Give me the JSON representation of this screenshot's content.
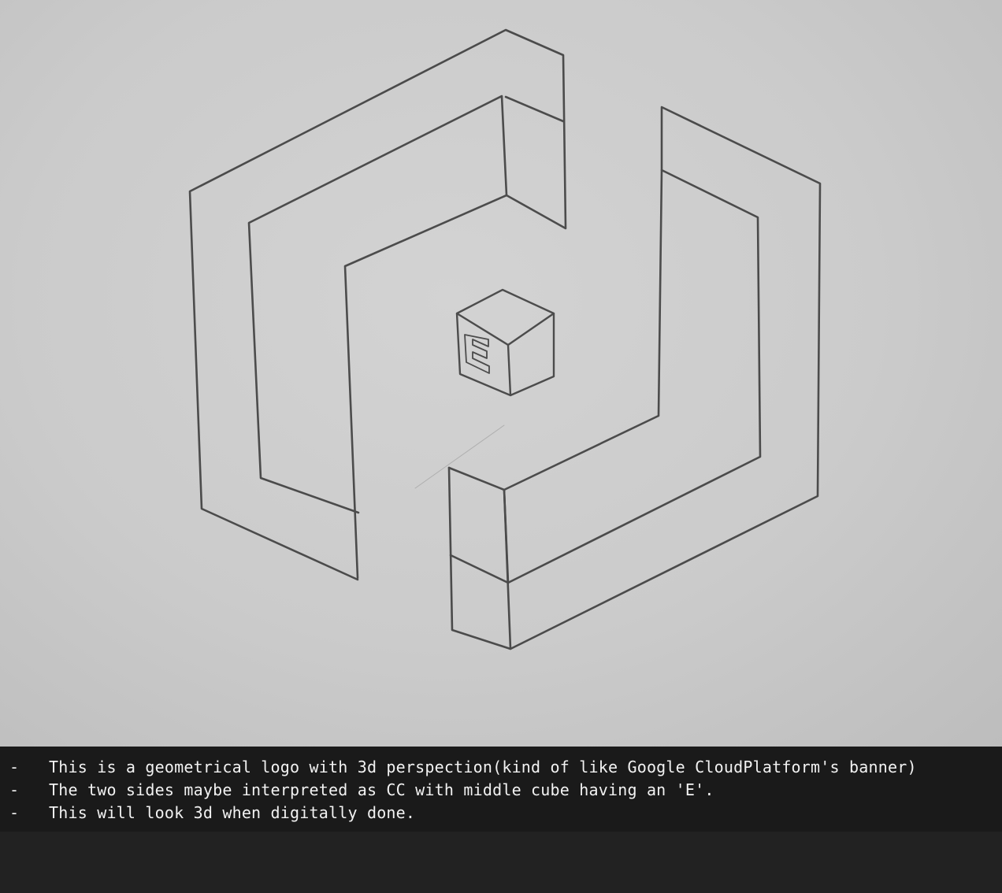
{
  "drawing": {
    "description_icon": "pencil-sketch-logo-icon",
    "cube_letter": "E",
    "ink_color": "#3a3a3a",
    "paper_color": "#cfcfcf"
  },
  "caption": {
    "background_color": "#1a1a1a",
    "text_color": "#f2f2f2",
    "lines": [
      {
        "bullet": "-",
        "text": "This is a geometrical logo with 3d perspection(kind of like Google CloudPlatform's banner)"
      },
      {
        "bullet": "-",
        "text": "The two sides maybe interpreted as CC with middle cube having an 'E'."
      },
      {
        "bullet": "-",
        "text": "This will look 3d when digitally done."
      }
    ]
  }
}
